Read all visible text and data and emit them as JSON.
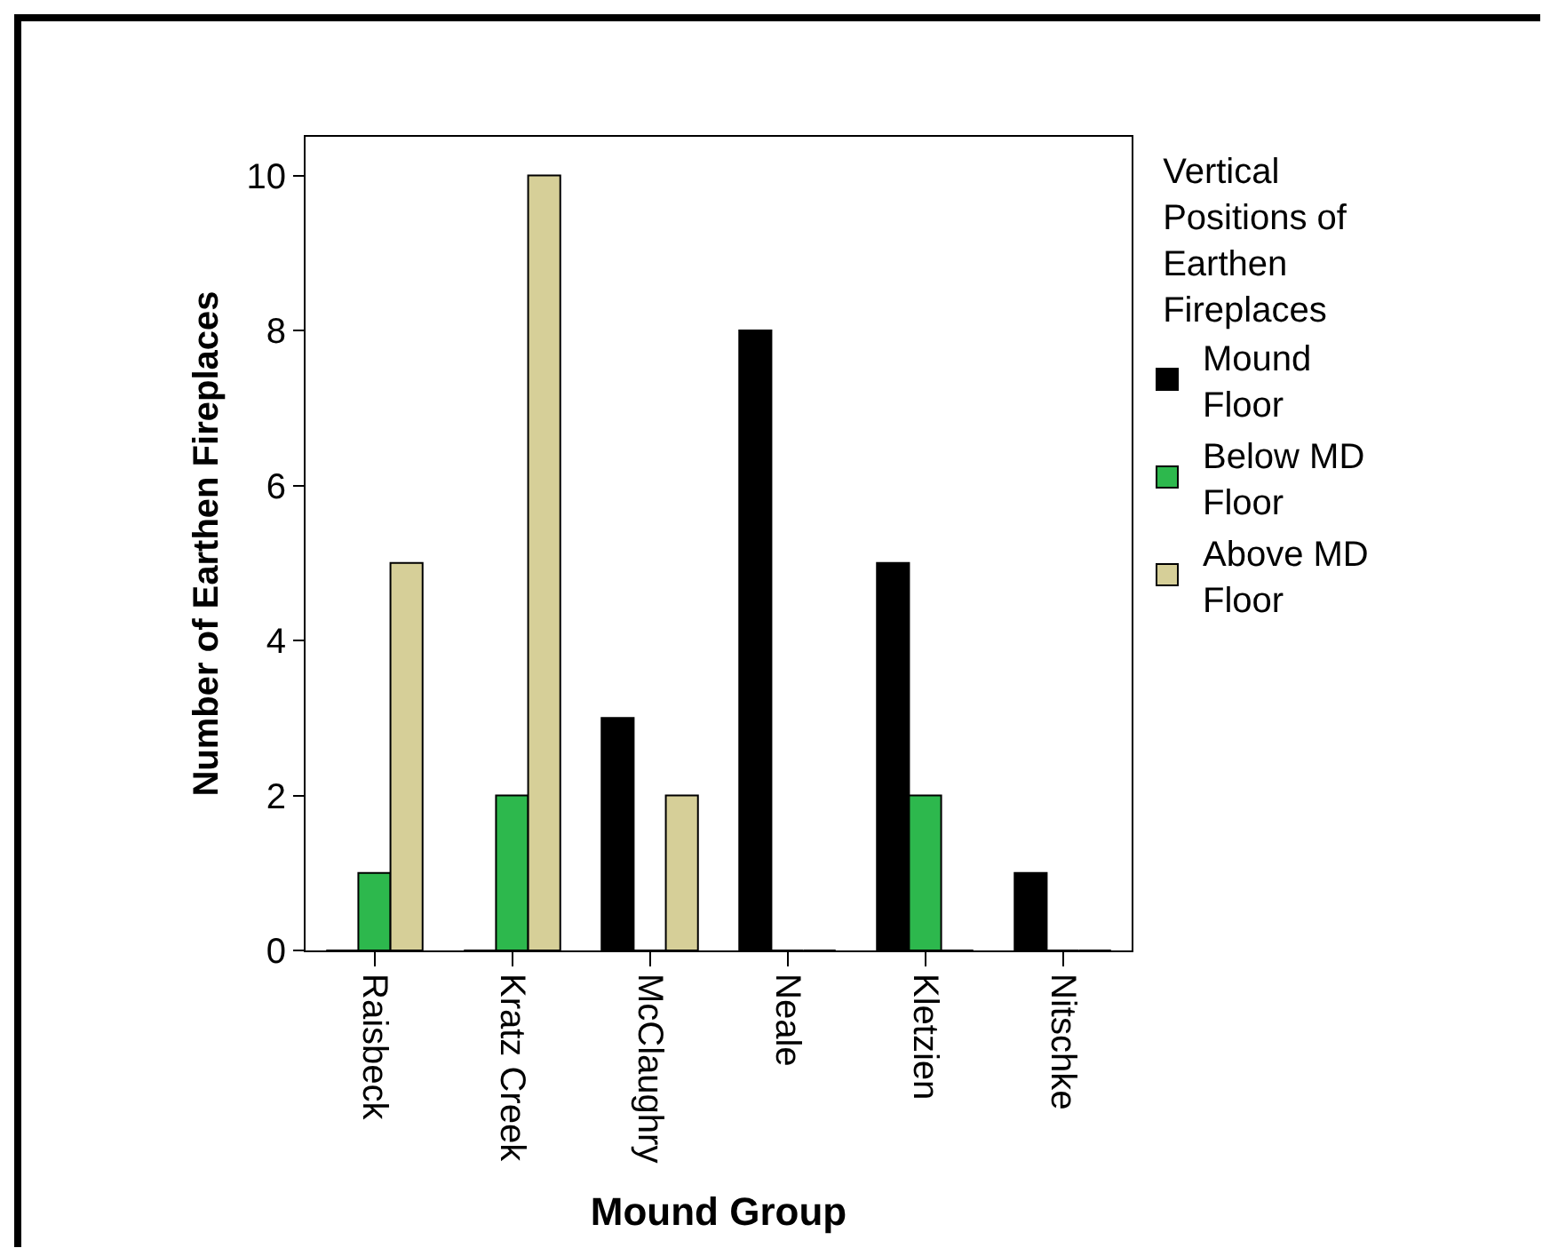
{
  "chart_data": {
    "type": "bar",
    "xlabel": "Mound Group",
    "ylabel": "Number of Earthen Fireplaces",
    "legend_title": "Vertical Positions of Earthen Fireplaces",
    "legend": "right",
    "categories": [
      "Raisbeck",
      "Kratz Creek",
      "McClaughry",
      "Neale",
      "Kletzien",
      "Nitschke"
    ],
    "series": [
      {
        "name": "Mound Floor",
        "color": "#000000",
        "values": [
          0,
          0,
          3,
          8,
          5,
          1
        ]
      },
      {
        "name": "Below MD Floor",
        "color": "#2db84d",
        "values": [
          1,
          2,
          0,
          0,
          2,
          0
        ]
      },
      {
        "name": "Above MD Floor",
        "color": "#d6cf98",
        "values": [
          5,
          10,
          2,
          0,
          0,
          0
        ]
      }
    ],
    "ylim": [
      0,
      10.5
    ],
    "yticks": [
      0,
      2,
      4,
      6,
      8,
      10
    ],
    "grid": false
  }
}
